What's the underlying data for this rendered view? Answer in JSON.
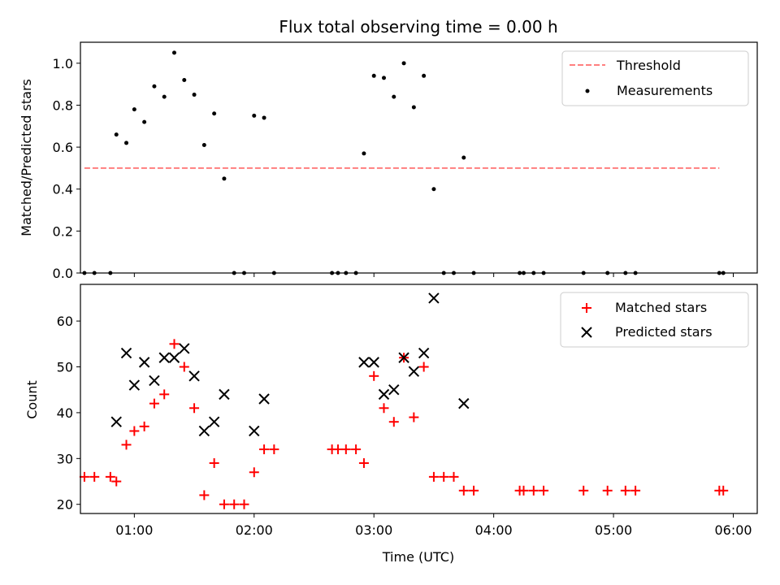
{
  "chart_data": [
    {
      "type": "scatter",
      "title": "Flux total observing time = 0.00 h",
      "ylabel": "Matched/Predicted stars",
      "ylim": [
        0,
        1.1
      ],
      "yticks": [
        "0.0",
        "0.2",
        "0.4",
        "0.6",
        "0.8",
        "1.0"
      ],
      "legend_placement": "top-right",
      "threshold": {
        "name": "Threshold",
        "value": 0.5,
        "x_range": [
          "00:35",
          "05:53"
        ],
        "color": "#ff7f7f",
        "style": "dashed"
      },
      "series": [
        {
          "name": "Measurements",
          "color": "#000000",
          "marker": "dot",
          "points": [
            [
              "00:35",
              0.0
            ],
            [
              "00:40",
              0.0
            ],
            [
              "00:48",
              0.0
            ],
            [
              "00:51",
              0.66
            ],
            [
              "00:56",
              0.62
            ],
            [
              "01:00",
              0.78
            ],
            [
              "01:05",
              0.72
            ],
            [
              "01:10",
              0.89
            ],
            [
              "01:15",
              0.84
            ],
            [
              "01:20",
              1.05
            ],
            [
              "01:25",
              0.92
            ],
            [
              "01:30",
              0.85
            ],
            [
              "01:35",
              0.61
            ],
            [
              "01:40",
              0.76
            ],
            [
              "01:45",
              0.45
            ],
            [
              "01:50",
              0.0
            ],
            [
              "01:55",
              0.0
            ],
            [
              "02:00",
              0.75
            ],
            [
              "02:05",
              0.74
            ],
            [
              "02:10",
              0.0
            ],
            [
              "02:39",
              0.0
            ],
            [
              "02:42",
              0.0
            ],
            [
              "02:46",
              0.0
            ],
            [
              "02:51",
              0.0
            ],
            [
              "02:55",
              0.57
            ],
            [
              "03:00",
              0.94
            ],
            [
              "03:05",
              0.93
            ],
            [
              "03:10",
              0.84
            ],
            [
              "03:15",
              1.0
            ],
            [
              "03:20",
              0.79
            ],
            [
              "03:25",
              0.94
            ],
            [
              "03:30",
              0.4
            ],
            [
              "03:35",
              0.0
            ],
            [
              "03:40",
              0.0
            ],
            [
              "03:45",
              0.55
            ],
            [
              "03:50",
              0.0
            ],
            [
              "04:13",
              0.0
            ],
            [
              "04:15",
              0.0
            ],
            [
              "04:20",
              0.0
            ],
            [
              "04:25",
              0.0
            ],
            [
              "04:45",
              0.0
            ],
            [
              "04:57",
              0.0
            ],
            [
              "05:06",
              0.0
            ],
            [
              "05:11",
              0.0
            ],
            [
              "05:53",
              0.0
            ],
            [
              "05:55",
              0.0
            ]
          ]
        }
      ]
    },
    {
      "type": "scatter",
      "xlabel": "Time (UTC)",
      "ylabel": "Count",
      "ylim": [
        18,
        68
      ],
      "yticks": [
        "20",
        "30",
        "40",
        "50",
        "60"
      ],
      "xticks": [
        "01:00",
        "02:00",
        "03:00",
        "04:00",
        "05:00",
        "06:00"
      ],
      "xlim": [
        "00:33",
        "06:12"
      ],
      "legend_placement": "top-right",
      "series": [
        {
          "name": "Matched stars",
          "color": "#ff0000",
          "marker": "plus",
          "points": [
            [
              "00:35",
              26
            ],
            [
              "00:40",
              26
            ],
            [
              "00:48",
              26
            ],
            [
              "00:51",
              25
            ],
            [
              "00:56",
              33
            ],
            [
              "01:00",
              36
            ],
            [
              "01:05",
              37
            ],
            [
              "01:10",
              42
            ],
            [
              "01:15",
              44
            ],
            [
              "01:20",
              55
            ],
            [
              "01:25",
              50
            ],
            [
              "01:30",
              41
            ],
            [
              "01:35",
              22
            ],
            [
              "01:40",
              29
            ],
            [
              "01:45",
              20
            ],
            [
              "01:50",
              20
            ],
            [
              "01:55",
              20
            ],
            [
              "02:00",
              27
            ],
            [
              "02:05",
              32
            ],
            [
              "02:10",
              32
            ],
            [
              "02:39",
              32
            ],
            [
              "02:42",
              32
            ],
            [
              "02:46",
              32
            ],
            [
              "02:51",
              32
            ],
            [
              "02:55",
              29
            ],
            [
              "03:00",
              48
            ],
            [
              "03:05",
              41
            ],
            [
              "03:10",
              38
            ],
            [
              "03:15",
              52
            ],
            [
              "03:20",
              39
            ],
            [
              "03:25",
              50
            ],
            [
              "03:30",
              26
            ],
            [
              "03:35",
              26
            ],
            [
              "03:40",
              26
            ],
            [
              "03:45",
              23
            ],
            [
              "03:50",
              23
            ],
            [
              "04:13",
              23
            ],
            [
              "04:15",
              23
            ],
            [
              "04:20",
              23
            ],
            [
              "04:25",
              23
            ],
            [
              "04:45",
              23
            ],
            [
              "04:57",
              23
            ],
            [
              "05:06",
              23
            ],
            [
              "05:11",
              23
            ],
            [
              "05:53",
              23
            ],
            [
              "05:55",
              23
            ]
          ]
        },
        {
          "name": "Predicted stars",
          "color": "#000000",
          "marker": "x",
          "points": [
            [
              "00:51",
              38
            ],
            [
              "00:56",
              53
            ],
            [
              "01:00",
              46
            ],
            [
              "01:05",
              51
            ],
            [
              "01:10",
              47
            ],
            [
              "01:15",
              52
            ],
            [
              "01:20",
              52
            ],
            [
              "01:25",
              54
            ],
            [
              "01:30",
              48
            ],
            [
              "01:35",
              36
            ],
            [
              "01:40",
              38
            ],
            [
              "01:45",
              44
            ],
            [
              "02:00",
              36
            ],
            [
              "02:05",
              43
            ],
            [
              "02:55",
              51
            ],
            [
              "03:00",
              51
            ],
            [
              "03:05",
              44
            ],
            [
              "03:10",
              45
            ],
            [
              "03:15",
              52
            ],
            [
              "03:20",
              49
            ],
            [
              "03:25",
              53
            ],
            [
              "03:30",
              65
            ],
            [
              "03:45",
              42
            ]
          ]
        }
      ]
    }
  ]
}
